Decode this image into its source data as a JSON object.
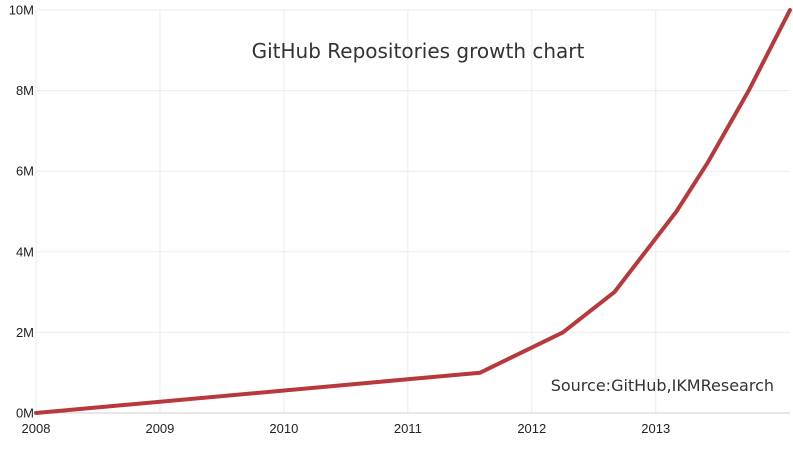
{
  "colors": {
    "series": "#b8393b",
    "grid": "#ebebeb",
    "axis": "#cfcfcf"
  },
  "chart_data": {
    "type": "line",
    "title": "GitHub Repositories growth chart",
    "annotation": "Source:GitHub,IKMResearch",
    "xlabel": "",
    "ylabel": "",
    "ylim": [
      0,
      10
    ],
    "xlim": [
      "2008-01",
      "2014-02"
    ],
    "yticks": [
      {
        "value": 0,
        "label": "0M"
      },
      {
        "value": 2,
        "label": "2M"
      },
      {
        "value": 4,
        "label": "4M"
      },
      {
        "value": 6,
        "label": "6M"
      },
      {
        "value": 8,
        "label": "8M"
      },
      {
        "value": 10,
        "label": "10M"
      }
    ],
    "xticks": [
      {
        "value": "2008",
        "label": "2008"
      },
      {
        "value": "2009",
        "label": "2009"
      },
      {
        "value": "2010",
        "label": "2010"
      },
      {
        "value": "2011",
        "label": "2011"
      },
      {
        "value": "2012",
        "label": "2012"
      },
      {
        "value": "2013",
        "label": "2013"
      }
    ],
    "grid": true,
    "series": [
      {
        "color": "#b8393b",
        "x": [
          "2008-01",
          "2011-08",
          "2012-04",
          "2012-09",
          "2012-12",
          "2013-03",
          "2013-06",
          "2013-10",
          "2014-02"
        ],
        "y": [
          0,
          1.0,
          2.0,
          3.0,
          4.0,
          5.0,
          6.2,
          8.0,
          10.0
        ]
      }
    ]
  }
}
